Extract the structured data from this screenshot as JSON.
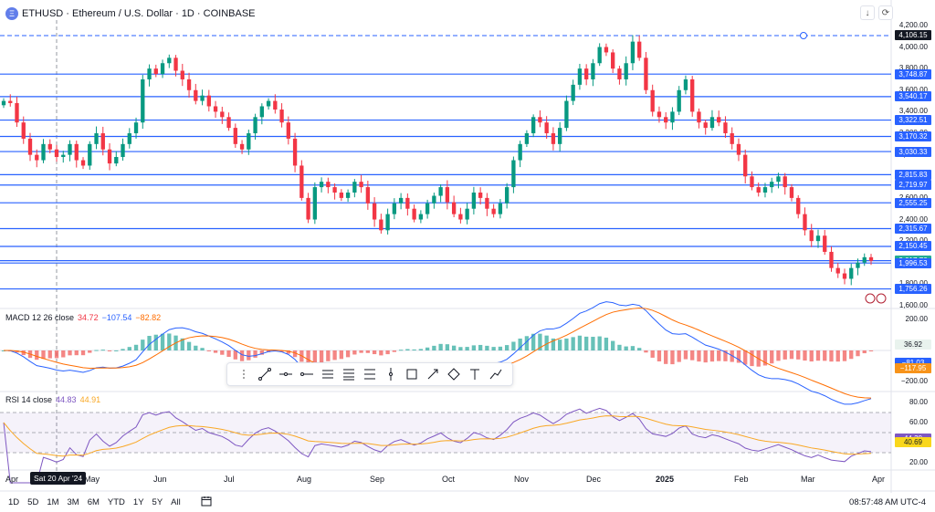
{
  "header": {
    "symbol_title": "ETHUSD · Ethereum / U.S. Dollar · 1D · COINBASE",
    "logo_glyph": "Ξ"
  },
  "toolbar": {
    "arrow_glyph": "↓",
    "refresh_glyph": "⟳"
  },
  "price_axis": {
    "ticks": [
      "4,200.00",
      "4,000.00",
      "3,800.00",
      "3,600.00",
      "3,400.00",
      "3,200.00",
      "3,000.00",
      "2,800.00",
      "2,600.00",
      "2,400.00",
      "2,200.00",
      "2,000.00",
      "1,800.00",
      "1,600.00"
    ],
    "tick_values": [
      4200,
      4000,
      3800,
      3600,
      3400,
      3200,
      3000,
      2800,
      2600,
      2400,
      2200,
      2000,
      1800,
      1600
    ]
  },
  "horizontal_levels": [
    {
      "value": 4106.15,
      "label": "4,106.15",
      "dashed": true,
      "bg": "#131722"
    },
    {
      "value": 3748.87,
      "label": "3,748.87"
    },
    {
      "value": 3540.17,
      "label": "3,540.17"
    },
    {
      "value": 3322.51,
      "label": "3,322.51"
    },
    {
      "value": 3170.32,
      "label": "3,170.32"
    },
    {
      "value": 3030.33,
      "label": "3,030.33"
    },
    {
      "value": 2815.83,
      "label": "2,815.83"
    },
    {
      "value": 2719.97,
      "label": "2,719.97"
    },
    {
      "value": 2555.25,
      "label": "2,555.25"
    },
    {
      "value": 2315.67,
      "label": "2,315.67"
    },
    {
      "value": 2150.45,
      "label": "2,150.45"
    },
    {
      "value": 2017.76,
      "label": "2,017.76",
      "bg": "#22ab94"
    },
    {
      "value": 1996.53,
      "label": "1,996.53"
    },
    {
      "value": 1756.26,
      "label": "1,756.26"
    }
  ],
  "macd": {
    "title": "MACD 12 26 close",
    "v1": "34.72",
    "v2": "−107.54",
    "v3": "−82.82",
    "ticks": [
      "200.00",
      "−200.00"
    ],
    "tick_values": [
      200,
      -200
    ],
    "labels": [
      {
        "text": "36.92",
        "value": 36.92,
        "bg": "#e9f3ee",
        "color": "#131722"
      },
      {
        "text": "−81.03",
        "value": -81.03,
        "bg": "#2962ff",
        "color": "#ffffff"
      },
      {
        "text": "−117.95",
        "value": -117.95,
        "bg": "#f7931a",
        "color": "#ffffff"
      }
    ]
  },
  "rsi": {
    "title": "RSI 14 close",
    "v1": "44.83",
    "v2": "44.91",
    "ticks": [
      "80.00",
      "60.00",
      "20.00"
    ],
    "tick_values": [
      80,
      60,
      20
    ],
    "labels": [
      {
        "text": "44.30",
        "value": 44.3,
        "bg": "#7e57c2",
        "color": "#ffffff"
      },
      {
        "text": "40.69",
        "value": 40.69,
        "bg": "#f9d71c",
        "color": "#131722"
      }
    ]
  },
  "x_axis": [
    "Apr",
    "May",
    "Jun",
    "Jul",
    "Aug",
    "Sep",
    "Oct",
    "Nov",
    "Dec",
    "2025",
    "Feb",
    "Mar",
    "Apr"
  ],
  "crosshair_date": "Sat 20 Apr '24",
  "bottom_bar": {
    "timeframes": [
      "1D",
      "5D",
      "1M",
      "3M",
      "6M",
      "YTD",
      "1Y",
      "5Y",
      "All"
    ],
    "time": "08:57:48 AM UTC-4"
  },
  "drawing_tools": [
    "cursor-dots",
    "trend-line",
    "horizontal-line",
    "horizontal-ray",
    "fib-retracement",
    "fib-channel",
    "parallel-channel",
    "vertical-line",
    "rectangle",
    "arrow",
    "shape-diamond",
    "anchored-text",
    "path"
  ],
  "colors": {
    "up": "#089981",
    "down": "#f23645",
    "level": "#2962ff",
    "macd_line": "#2962ff",
    "signal_line": "#ff6d00",
    "rsi_line": "#7e57c2",
    "rsi_ma": "#f9a825"
  },
  "chart_data": {
    "type": "candlestick",
    "title": "ETHUSD · Ethereum / U.S. Dollar · 1D · COINBASE",
    "ylim": [
      1600,
      4250
    ],
    "months": [
      "Apr",
      "May",
      "Jun",
      "Jul",
      "Aug",
      "Sep",
      "Oct",
      "Nov",
      "Dec",
      "2025",
      "Feb",
      "Mar",
      "Apr"
    ],
    "closes": [
      3500,
      3480,
      3300,
      3150,
      3000,
      2950,
      3100,
      3050,
      2980,
      3000,
      3100,
      2950,
      2900,
      3100,
      3200,
      3050,
      2920,
      2980,
      3100,
      3200,
      3300,
      3700,
      3800,
      3750,
      3850,
      3900,
      3780,
      3700,
      3600,
      3500,
      3550,
      3450,
      3400,
      3350,
      3250,
      3100,
      3050,
      3200,
      3350,
      3450,
      3500,
      3420,
      3300,
      3150,
      2900,
      2600,
      2400,
      2700,
      2750,
      2700,
      2650,
      2600,
      2650,
      2750,
      2700,
      2550,
      2400,
      2300,
      2450,
      2550,
      2600,
      2500,
      2400,
      2450,
      2550,
      2620,
      2700,
      2560,
      2450,
      2400,
      2500,
      2650,
      2600,
      2500,
      2450,
      2550,
      2700,
      2950,
      3100,
      3200,
      3350,
      3300,
      3200,
      3100,
      3250,
      3500,
      3650,
      3800,
      3700,
      3850,
      4000,
      3950,
      3800,
      3700,
      3850,
      4050,
      3900,
      3600,
      3400,
      3350,
      3300,
      3400,
      3600,
      3700,
      3400,
      3300,
      3250,
      3350,
      3300,
      3200,
      3100,
      3000,
      2800,
      2700,
      2650,
      2700,
      2750,
      2800,
      2700,
      2600,
      2450,
      2300,
      2200,
      2250,
      2100,
      1950,
      1900,
      1850,
      1950,
      2000,
      2050,
      2017
    ]
  }
}
